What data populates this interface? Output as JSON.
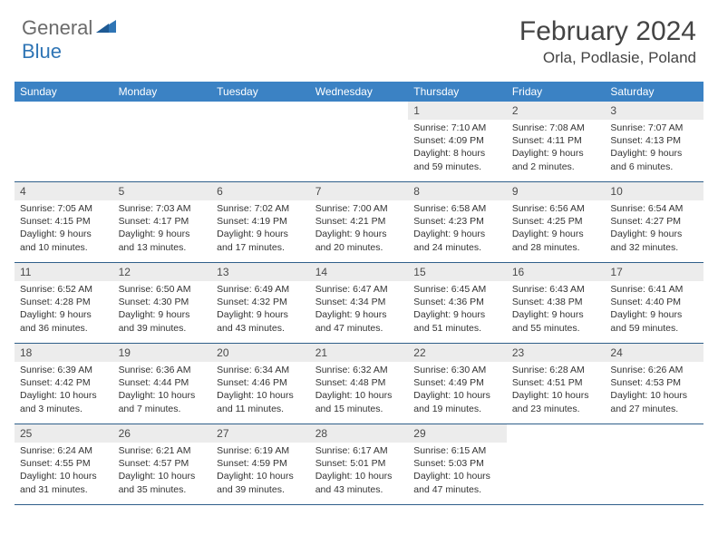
{
  "logo": {
    "general": "General",
    "blue": "Blue"
  },
  "title": "February 2024",
  "location": "Orla, Podlasie, Poland",
  "colors": {
    "header_bar": "#3b82c4",
    "day_number_bg": "#ececec",
    "row_border": "#2f5f8a",
    "text": "#333333",
    "logo_gray": "#6b6b6b",
    "logo_blue": "#2f75b5"
  },
  "days_of_week": [
    "Sunday",
    "Monday",
    "Tuesday",
    "Wednesday",
    "Thursday",
    "Friday",
    "Saturday"
  ],
  "weeks": [
    [
      null,
      null,
      null,
      null,
      {
        "n": "1",
        "sunrise": "Sunrise: 7:10 AM",
        "sunset": "Sunset: 4:09 PM",
        "daylight": "Daylight: 8 hours and 59 minutes."
      },
      {
        "n": "2",
        "sunrise": "Sunrise: 7:08 AM",
        "sunset": "Sunset: 4:11 PM",
        "daylight": "Daylight: 9 hours and 2 minutes."
      },
      {
        "n": "3",
        "sunrise": "Sunrise: 7:07 AM",
        "sunset": "Sunset: 4:13 PM",
        "daylight": "Daylight: 9 hours and 6 minutes."
      }
    ],
    [
      {
        "n": "4",
        "sunrise": "Sunrise: 7:05 AM",
        "sunset": "Sunset: 4:15 PM",
        "daylight": "Daylight: 9 hours and 10 minutes."
      },
      {
        "n": "5",
        "sunrise": "Sunrise: 7:03 AM",
        "sunset": "Sunset: 4:17 PM",
        "daylight": "Daylight: 9 hours and 13 minutes."
      },
      {
        "n": "6",
        "sunrise": "Sunrise: 7:02 AM",
        "sunset": "Sunset: 4:19 PM",
        "daylight": "Daylight: 9 hours and 17 minutes."
      },
      {
        "n": "7",
        "sunrise": "Sunrise: 7:00 AM",
        "sunset": "Sunset: 4:21 PM",
        "daylight": "Daylight: 9 hours and 20 minutes."
      },
      {
        "n": "8",
        "sunrise": "Sunrise: 6:58 AM",
        "sunset": "Sunset: 4:23 PM",
        "daylight": "Daylight: 9 hours and 24 minutes."
      },
      {
        "n": "9",
        "sunrise": "Sunrise: 6:56 AM",
        "sunset": "Sunset: 4:25 PM",
        "daylight": "Daylight: 9 hours and 28 minutes."
      },
      {
        "n": "10",
        "sunrise": "Sunrise: 6:54 AM",
        "sunset": "Sunset: 4:27 PM",
        "daylight": "Daylight: 9 hours and 32 minutes."
      }
    ],
    [
      {
        "n": "11",
        "sunrise": "Sunrise: 6:52 AM",
        "sunset": "Sunset: 4:28 PM",
        "daylight": "Daylight: 9 hours and 36 minutes."
      },
      {
        "n": "12",
        "sunrise": "Sunrise: 6:50 AM",
        "sunset": "Sunset: 4:30 PM",
        "daylight": "Daylight: 9 hours and 39 minutes."
      },
      {
        "n": "13",
        "sunrise": "Sunrise: 6:49 AM",
        "sunset": "Sunset: 4:32 PM",
        "daylight": "Daylight: 9 hours and 43 minutes."
      },
      {
        "n": "14",
        "sunrise": "Sunrise: 6:47 AM",
        "sunset": "Sunset: 4:34 PM",
        "daylight": "Daylight: 9 hours and 47 minutes."
      },
      {
        "n": "15",
        "sunrise": "Sunrise: 6:45 AM",
        "sunset": "Sunset: 4:36 PM",
        "daylight": "Daylight: 9 hours and 51 minutes."
      },
      {
        "n": "16",
        "sunrise": "Sunrise: 6:43 AM",
        "sunset": "Sunset: 4:38 PM",
        "daylight": "Daylight: 9 hours and 55 minutes."
      },
      {
        "n": "17",
        "sunrise": "Sunrise: 6:41 AM",
        "sunset": "Sunset: 4:40 PM",
        "daylight": "Daylight: 9 hours and 59 minutes."
      }
    ],
    [
      {
        "n": "18",
        "sunrise": "Sunrise: 6:39 AM",
        "sunset": "Sunset: 4:42 PM",
        "daylight": "Daylight: 10 hours and 3 minutes."
      },
      {
        "n": "19",
        "sunrise": "Sunrise: 6:36 AM",
        "sunset": "Sunset: 4:44 PM",
        "daylight": "Daylight: 10 hours and 7 minutes."
      },
      {
        "n": "20",
        "sunrise": "Sunrise: 6:34 AM",
        "sunset": "Sunset: 4:46 PM",
        "daylight": "Daylight: 10 hours and 11 minutes."
      },
      {
        "n": "21",
        "sunrise": "Sunrise: 6:32 AM",
        "sunset": "Sunset: 4:48 PM",
        "daylight": "Daylight: 10 hours and 15 minutes."
      },
      {
        "n": "22",
        "sunrise": "Sunrise: 6:30 AM",
        "sunset": "Sunset: 4:49 PM",
        "daylight": "Daylight: 10 hours and 19 minutes."
      },
      {
        "n": "23",
        "sunrise": "Sunrise: 6:28 AM",
        "sunset": "Sunset: 4:51 PM",
        "daylight": "Daylight: 10 hours and 23 minutes."
      },
      {
        "n": "24",
        "sunrise": "Sunrise: 6:26 AM",
        "sunset": "Sunset: 4:53 PM",
        "daylight": "Daylight: 10 hours and 27 minutes."
      }
    ],
    [
      {
        "n": "25",
        "sunrise": "Sunrise: 6:24 AM",
        "sunset": "Sunset: 4:55 PM",
        "daylight": "Daylight: 10 hours and 31 minutes."
      },
      {
        "n": "26",
        "sunrise": "Sunrise: 6:21 AM",
        "sunset": "Sunset: 4:57 PM",
        "daylight": "Daylight: 10 hours and 35 minutes."
      },
      {
        "n": "27",
        "sunrise": "Sunrise: 6:19 AM",
        "sunset": "Sunset: 4:59 PM",
        "daylight": "Daylight: 10 hours and 39 minutes."
      },
      {
        "n": "28",
        "sunrise": "Sunrise: 6:17 AM",
        "sunset": "Sunset: 5:01 PM",
        "daylight": "Daylight: 10 hours and 43 minutes."
      },
      {
        "n": "29",
        "sunrise": "Sunrise: 6:15 AM",
        "sunset": "Sunset: 5:03 PM",
        "daylight": "Daylight: 10 hours and 47 minutes."
      },
      null,
      null
    ]
  ]
}
